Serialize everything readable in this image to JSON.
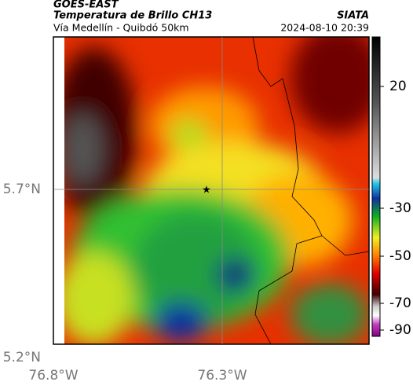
{
  "header": {
    "title": "GOES-EAST",
    "subtitle": "Temperatura de Brillo CH13",
    "source": "SIATA",
    "location": "Vía Medellín - Quibdó 50km",
    "datetime": "2024-08-10 20:39"
  },
  "axes": {
    "x_ticks": [
      "76.8°W",
      "76.3°W"
    ],
    "y_ticks": [
      "5.7°N",
      "5.2°N"
    ]
  },
  "colorbar": {
    "ticks": [
      "20",
      "-30",
      "-50",
      "-70",
      "-90"
    ]
  }
}
